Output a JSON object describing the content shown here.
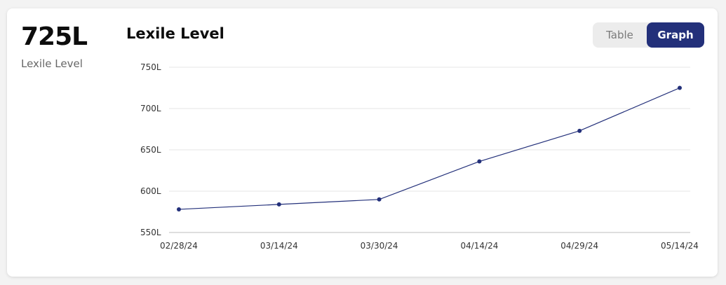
{
  "summary": {
    "value": "725L",
    "caption": "Lexile Level"
  },
  "header": {
    "title": "Lexile Level"
  },
  "toggle": {
    "table_label": "Table",
    "graph_label": "Graph",
    "active": "Graph"
  },
  "colors": {
    "accent": "#23307a",
    "line": "#23307a",
    "grid": "#e6e6e6"
  },
  "chart_data": {
    "type": "line",
    "title": "Lexile Level",
    "xlabel": "",
    "ylabel": "",
    "x": [
      "02/28/24",
      "03/14/24",
      "03/30/24",
      "04/14/24",
      "04/29/24",
      "05/14/24"
    ],
    "series": [
      {
        "values": [
          578,
          584,
          590,
          636,
          673,
          725
        ]
      }
    ],
    "yticks": [
      "550L",
      "600L",
      "650L",
      "700L",
      "750L"
    ],
    "ylim": [
      550,
      750
    ],
    "grid": true,
    "legend": "none"
  }
}
